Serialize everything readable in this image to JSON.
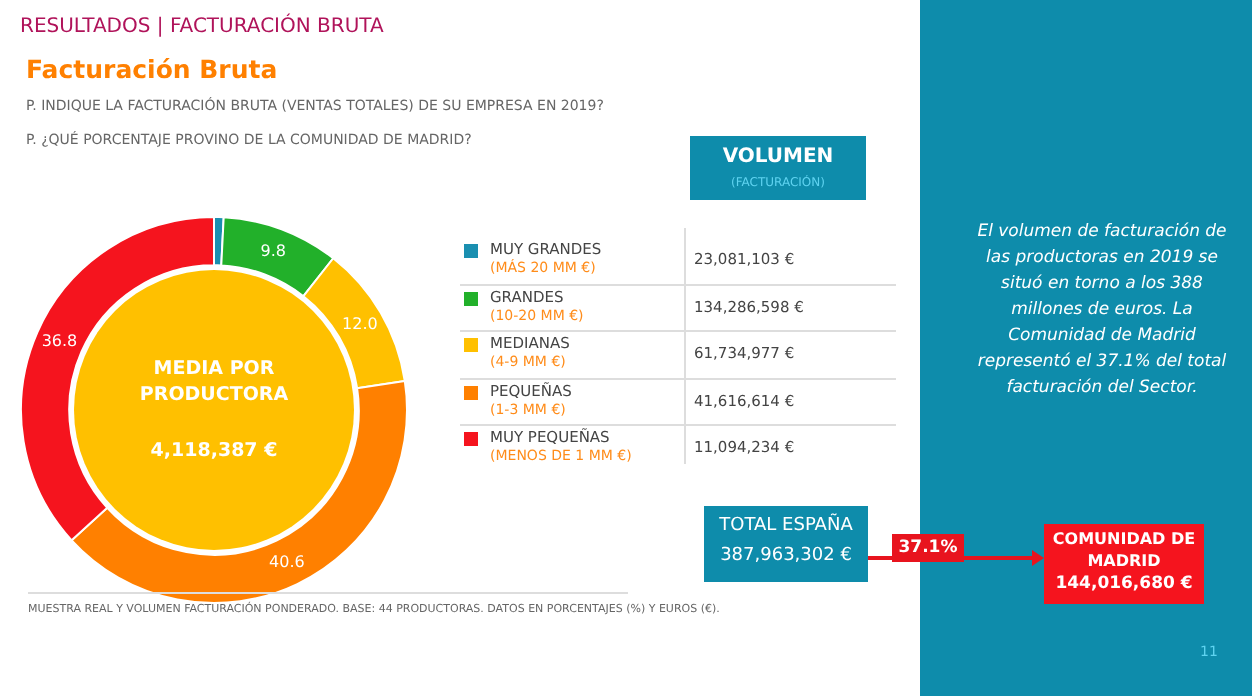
{
  "chart_data": {
    "type": "donut",
    "title": "Facturación Bruta",
    "subtitle": "RESULTADOS | FACTURACIÓN BRUTA",
    "categories": [
      "MUY GRANDES\n(MÁS 20 MM €)",
      "GRANDES\n(10-20 MM €)",
      "MEDIANAS\n(4-9 MM €)",
      "PEQUEÑAS\n(1-3 MM €)",
      "MUY PEQUEÑAS\n(MENOS DE 1 MM €)"
    ],
    "values": [
      0.8,
      9.8,
      12.0,
      40.6,
      36.8
    ],
    "value_labels": [
      null,
      "9.8",
      "12.0",
      "40.6",
      "36.8"
    ],
    "colors": [
      "#1a8fb0",
      "#22b02a",
      "#ffc000",
      "#ff8000",
      "#f5141e"
    ],
    "legend": "right",
    "annotations": [
      "P. INDIQUE LA FACTURACIÓN BRUTA (VENTAS TOTALES) DE SU EMPRESA EN 2019?",
      "P. ¿QUÉ PORCENTAJE PROVINO DE LA COMUNIDAD DE MADRID?",
      "MEDIA POR PRODUCTORA",
      "4,118,387 €",
      "VOLUMEN",
      "(FACTURACIÓN)",
      "23,081,103 €",
      "134,286,598 €",
      "61,734,977 €",
      "41,616,614 €",
      "11,094,234 €",
      "TOTAL ESPAÑA",
      "387,963,302 €",
      "37.1%",
      "COMUNIDAD DE MADRID",
      "144,016,680 €",
      "El volumen de facturación de las productoras en 2019 se situó en torno a los 388 millones de euros. La Comunidad de Madrid representó el 37.1% del total facturación del Sector.",
      "MUESTRA REAL Y VOLUMEN FACTURACIÓN PONDERADO. BASE: 44 PRODUCTORAS. DATOS EN PORCENTAJES (%) Y EUROS (€).",
      "11"
    ]
  }
}
